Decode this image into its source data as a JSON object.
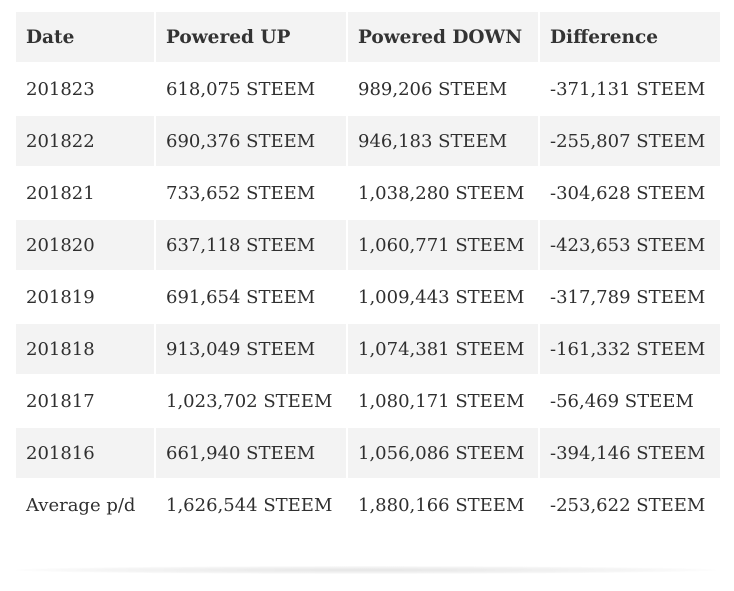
{
  "table": {
    "headers": [
      "Date",
      "Powered UP",
      "Powered DOWN",
      "Difference"
    ],
    "rows": [
      [
        "201823",
        "618,075 STEEM",
        "989,206 STEEM",
        "-371,131 STEEM"
      ],
      [
        "201822",
        "690,376 STEEM",
        "946,183 STEEM",
        "-255,807 STEEM"
      ],
      [
        "201821",
        "733,652 STEEM",
        "1,038,280 STEEM",
        "-304,628 STEEM"
      ],
      [
        "201820",
        "637,118 STEEM",
        "1,060,771 STEEM",
        "-423,653 STEEM"
      ],
      [
        "201819",
        "691,654 STEEM",
        "1,009,443 STEEM",
        "-317,789 STEEM"
      ],
      [
        "201818",
        "913,049 STEEM",
        "1,074,381 STEEM",
        "-161,332 STEEM"
      ],
      [
        "201817",
        "1,023,702 STEEM",
        "1,080,171 STEEM",
        "-56,469 STEEM"
      ],
      [
        "201816",
        "661,940 STEEM",
        "1,056,086 STEEM",
        "-394,146 STEEM"
      ],
      [
        "Average p/d",
        "1,626,544 STEEM",
        "1,880,166 STEEM",
        "-253,622 STEEM"
      ]
    ]
  },
  "colors": {
    "stripe": "#f3f3f3",
    "text": "#2f2f2f"
  }
}
